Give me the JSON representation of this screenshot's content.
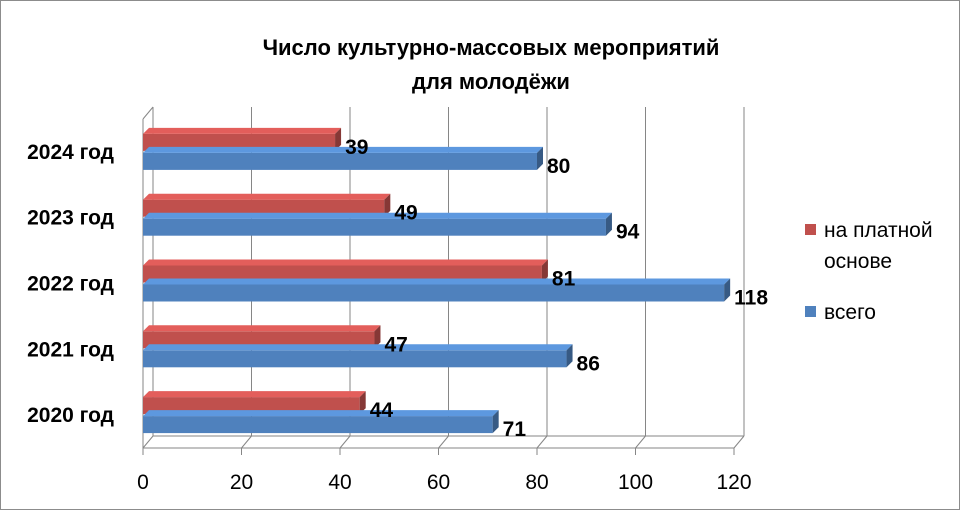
{
  "chart_data": {
    "type": "bar",
    "orientation": "horizontal",
    "title_lines": [
      "Число культурно-массовых мероприятий",
      "для молодёжи"
    ],
    "categories": [
      "2020 год",
      "2021 год",
      "2022 год",
      "2023 год",
      "2024 год"
    ],
    "series": [
      {
        "name": "на платной основе",
        "name_lines": [
          "на платной",
          "основе"
        ],
        "values": [
          44,
          47,
          81,
          49,
          39
        ],
        "color": "#c0504d"
      },
      {
        "name": "всего",
        "name_lines": [
          "всего"
        ],
        "values": [
          71,
          86,
          118,
          94,
          80
        ],
        "color": "#4f81bd"
      }
    ],
    "xlim": [
      0,
      120
    ],
    "xticks": [
      0,
      20,
      40,
      60,
      80,
      100,
      120
    ],
    "grid": true,
    "legend_position": "right"
  }
}
